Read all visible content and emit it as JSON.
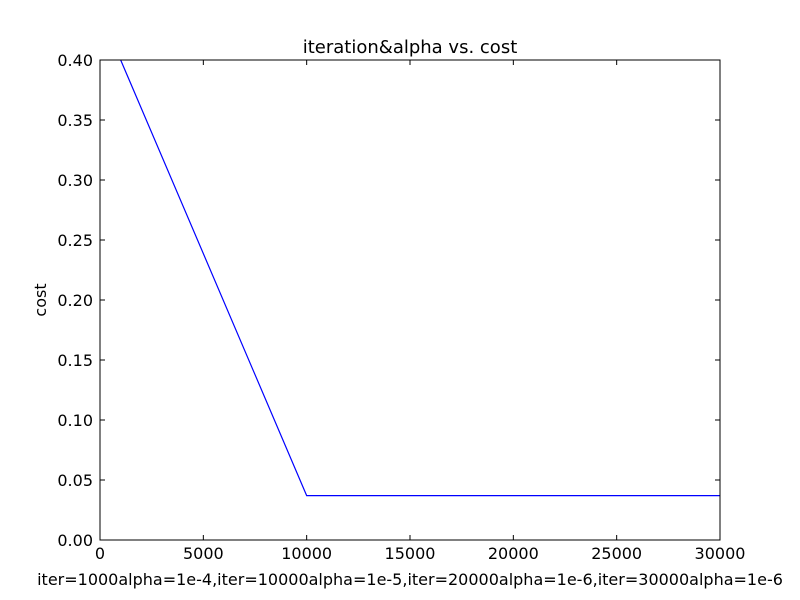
{
  "chart_data": {
    "type": "line",
    "title": "iteration&alpha vs. cost",
    "xlabel": "iter=1000alpha=1e-4,iter=10000alpha=1e-5,iter=20000alpha=1e-6,iter=30000alpha=1e-6",
    "ylabel": "cost",
    "xlim": [
      0,
      30000
    ],
    "ylim": [
      0,
      0.4
    ],
    "xticks": [
      0,
      5000,
      10000,
      15000,
      20000,
      25000,
      30000
    ],
    "xtick_labels": [
      "0",
      "5000",
      "10000",
      "15000",
      "20000",
      "25000",
      "30000"
    ],
    "yticks": [
      0,
      0.05,
      0.1,
      0.15,
      0.2,
      0.25,
      0.3,
      0.35,
      0.4
    ],
    "ytick_labels": [
      "0.00",
      "0.05",
      "0.10",
      "0.15",
      "0.20",
      "0.25",
      "0.30",
      "0.35",
      "0.40"
    ],
    "grid": false,
    "series": [
      {
        "color": "#0000ff",
        "x": [
          1000,
          10000,
          20000,
          30000
        ],
        "y": [
          0.4,
          0.037,
          0.037,
          0.037
        ]
      }
    ]
  }
}
